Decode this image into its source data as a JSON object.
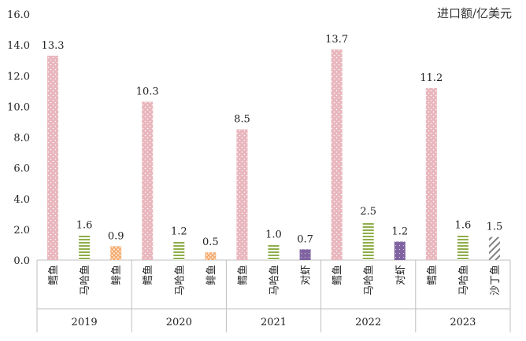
{
  "unit_label": "进口额/亿美元",
  "colors": {
    "axis": "#bfbfbf",
    "grid": "#d9d9d9",
    "鳕鱼": "#e8b6bc",
    "马哈鱼": "#8fae4a",
    "鲱鱼": "#f4a460",
    "对虾": "#8064a2",
    "沙丁鱼": "#7f7f7f"
  },
  "chart_data": {
    "type": "bar",
    "title": "",
    "xlabel": "",
    "ylabel": "进口额/亿美元",
    "ylim": [
      0,
      16
    ],
    "yticks": [
      "0.0",
      "2.0",
      "4.0",
      "6.0",
      "8.0",
      "10.0",
      "12.0",
      "14.0",
      "16.0"
    ],
    "grid": false,
    "groups": [
      {
        "year": "2019",
        "bars": [
          {
            "category": "鳕鱼",
            "value": 13.3,
            "label": "13.3"
          },
          {
            "category": "马哈鱼",
            "value": 1.6,
            "label": "1.6"
          },
          {
            "category": "鲱鱼",
            "value": 0.9,
            "label": "0.9"
          }
        ]
      },
      {
        "year": "2020",
        "bars": [
          {
            "category": "鳕鱼",
            "value": 10.3,
            "label": "10.3"
          },
          {
            "category": "马哈鱼",
            "value": 1.2,
            "label": "1.2"
          },
          {
            "category": "鲱鱼",
            "value": 0.5,
            "label": "0.5"
          }
        ]
      },
      {
        "year": "2021",
        "bars": [
          {
            "category": "鳕鱼",
            "value": 8.5,
            "label": "8.5"
          },
          {
            "category": "马哈鱼",
            "value": 1.0,
            "label": "1.0"
          },
          {
            "category": "对虾",
            "value": 0.7,
            "label": "0.7"
          }
        ]
      },
      {
        "year": "2022",
        "bars": [
          {
            "category": "鳕鱼",
            "value": 13.7,
            "label": "13.7"
          },
          {
            "category": "马哈鱼",
            "value": 2.5,
            "label": "2.5"
          },
          {
            "category": "对虾",
            "value": 1.2,
            "label": "1.2"
          }
        ]
      },
      {
        "year": "2023",
        "bars": [
          {
            "category": "鳕鱼",
            "value": 11.2,
            "label": "11.2"
          },
          {
            "category": "马哈鱼",
            "value": 1.6,
            "label": "1.6"
          },
          {
            "category": "沙丁鱼",
            "value": 1.5,
            "label": "1.5"
          }
        ]
      }
    ]
  }
}
